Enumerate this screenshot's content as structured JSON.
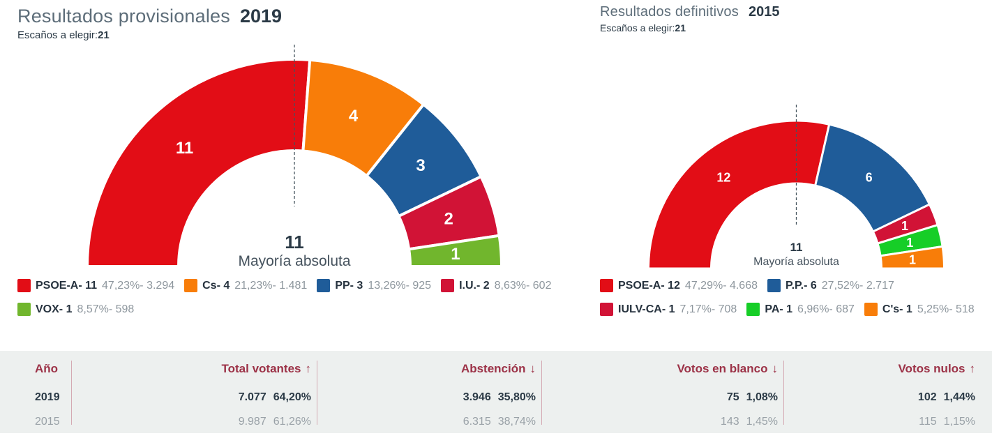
{
  "chart_data": [
    {
      "type": "pie",
      "subtype": "half-donut",
      "title": "Resultados provisionales",
      "year": "2019",
      "seats_label": "Escaños a elegir:",
      "seats_total": 21,
      "majority_value": "11",
      "majority_label": "Mayoría absoluta",
      "legend_position": "bottom",
      "series": [
        {
          "name": "PSOE-A",
          "seats": 11,
          "pct": "47,23",
          "votes": "3.294",
          "color": "#e20d16"
        },
        {
          "name": "Cs",
          "seats": 4,
          "pct": "21,23",
          "votes": "1.481",
          "color": "#f87d09"
        },
        {
          "name": "PP",
          "seats": 3,
          "pct": "13,26",
          "votes": "925",
          "color": "#1f5c99"
        },
        {
          "name": "I.U.",
          "seats": 2,
          "pct": "8,63",
          "votes": "602",
          "color": "#d11336"
        },
        {
          "name": "VOX",
          "seats": 1,
          "pct": "8,57",
          "votes": "598",
          "color": "#71b62d"
        }
      ]
    },
    {
      "type": "pie",
      "subtype": "half-donut",
      "title": "Resultados definitivos",
      "year": "2015",
      "seats_label": "Escaños a elegir:",
      "seats_total": 21,
      "majority_value": "11",
      "majority_label": "Mayoría absoluta",
      "legend_position": "bottom",
      "series": [
        {
          "name": "PSOE-A",
          "seats": 12,
          "pct": "47,29",
          "votes": "4.668",
          "color": "#e20d16"
        },
        {
          "name": "P.P.",
          "seats": 6,
          "pct": "27,52",
          "votes": "2.717",
          "color": "#1f5c99"
        },
        {
          "name": "IULV-CA",
          "seats": 1,
          "pct": "7,17",
          "votes": "708",
          "color": "#d11336"
        },
        {
          "name": "PA",
          "seats": 1,
          "pct": "6,96",
          "votes": "687",
          "color": "#16ce27"
        },
        {
          "name": "C's",
          "seats": 1,
          "pct": "5,25",
          "votes": "518",
          "color": "#f87d09"
        }
      ]
    },
    {
      "type": "table",
      "columns": [
        {
          "label": "Año",
          "arrow": ""
        },
        {
          "label": "Total votantes",
          "arrow": "↑"
        },
        {
          "label": "Abstención",
          "arrow": "↓"
        },
        {
          "label": "Votos en blanco",
          "arrow": "↓"
        },
        {
          "label": "Votos nulos",
          "arrow": "↑"
        }
      ],
      "rows": [
        {
          "year": "2019",
          "emphasis": true,
          "values": [
            [
              "7.077",
              "64,20%"
            ],
            [
              "3.946",
              "35,80%"
            ],
            [
              "75",
              "1,08%"
            ],
            [
              "102",
              "1,44%"
            ]
          ]
        },
        {
          "year": "2015",
          "emphasis": false,
          "values": [
            [
              "9.987",
              "61,26%"
            ],
            [
              "6.315",
              "38,74%"
            ],
            [
              "143",
              "1,45%"
            ],
            [
              "115",
              "1,15%"
            ]
          ]
        }
      ]
    }
  ],
  "colors": {
    "title_gray": "#5d6d79",
    "dark_text": "#2b3a46",
    "legend_gray": "#8d969d",
    "table_header": "#9c3247",
    "table_bg": "#edf0ef",
    "table_divider": "#d4aab3",
    "majority_line": "#45545e"
  }
}
